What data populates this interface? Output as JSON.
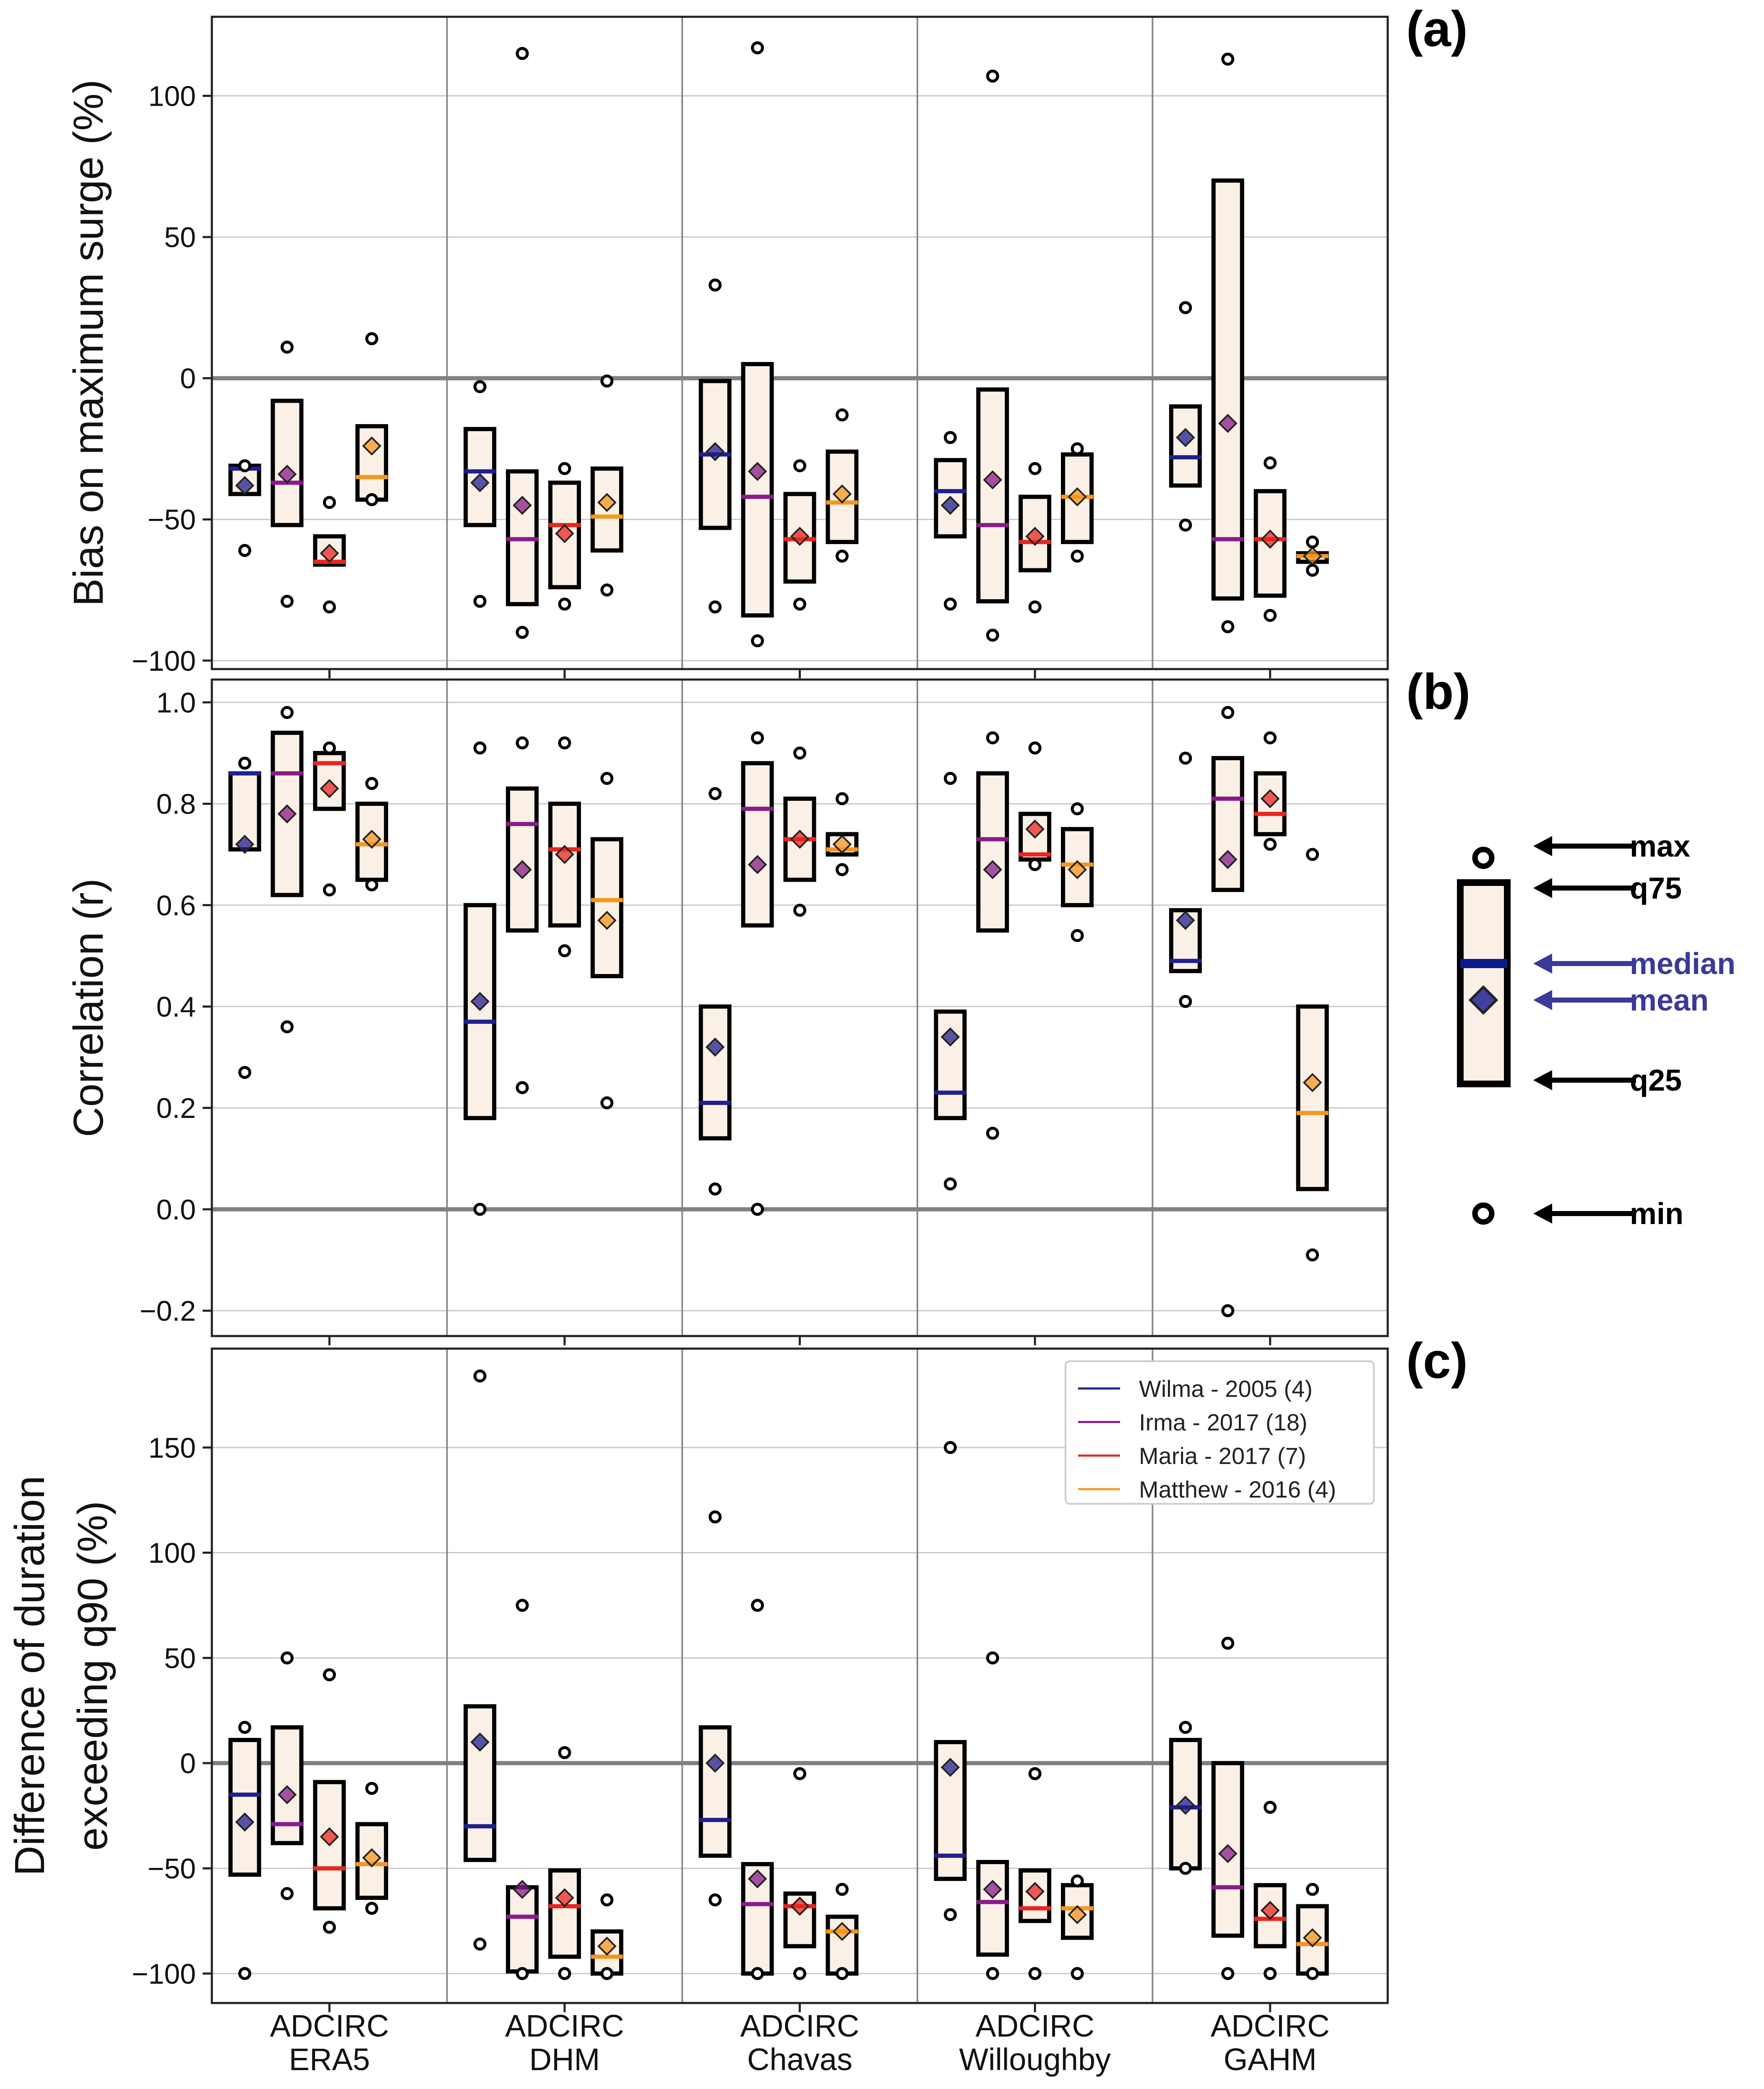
{
  "colors": {
    "Wilma": "#1f1f8f",
    "Irma": "#8a1a8a",
    "Maria": "#e8261f",
    "Matthew": "#f5961e",
    "box_fill": "#fbf0e6",
    "legend_diagram": "#3a3a99"
  },
  "categories": [
    [
      "ADCIRC",
      "ERA5"
    ],
    [
      "ADCIRC",
      "DHM"
    ],
    [
      "ADCIRC",
      "Chavas"
    ],
    [
      "ADCIRC",
      "Willoughby"
    ],
    [
      "ADCIRC",
      "GAHM"
    ]
  ],
  "chart_data": [
    {
      "type": "box",
      "panel": "(a)",
      "ylabel": [
        "Bias on maximum surge (%)"
      ],
      "ylim": [
        -103,
        128
      ],
      "yticks": [
        -100,
        -50,
        0,
        50,
        100
      ],
      "tick_labels": [
        "−100",
        "−50",
        "0",
        "50",
        "100"
      ],
      "grid": true,
      "series": [
        {
          "name": "Wilma",
          "min": [
            -61,
            -79,
            -81,
            -80,
            -52
          ],
          "q25": [
            -41,
            -52,
            -53,
            -56,
            -38
          ],
          "median": [
            -32,
            -33,
            -27,
            -40,
            -28
          ],
          "q75": [
            -31,
            -18,
            -1,
            -29,
            -10
          ],
          "max": [
            -31,
            -3,
            33,
            -21,
            25
          ],
          "mean": [
            -38,
            -37,
            -26,
            -45,
            -21
          ]
        },
        {
          "name": "Irma",
          "min": [
            -79,
            -90,
            -93,
            -91,
            -88
          ],
          "q25": [
            -52,
            -80,
            -84,
            -79,
            -78
          ],
          "median": [
            -37,
            -57,
            -42,
            -52,
            -57
          ],
          "q75": [
            -8,
            -33,
            5,
            -4,
            70
          ],
          "max": [
            11,
            115,
            117,
            107,
            113
          ],
          "mean": [
            -34,
            -45,
            -33,
            -36,
            -16
          ]
        },
        {
          "name": "Maria",
          "min": [
            -81,
            -80,
            -80,
            -81,
            -84
          ],
          "q25": [
            -66,
            -74,
            -72,
            -68,
            -77
          ],
          "median": [
            -65,
            -52,
            -57,
            -58,
            -57
          ],
          "q75": [
            -56,
            -37,
            -41,
            -42,
            -40
          ],
          "max": [
            -44,
            -32,
            -31,
            -32,
            -30
          ],
          "mean": [
            -62,
            -55,
            -56,
            -56,
            -57
          ]
        },
        {
          "name": "Matthew",
          "min": [
            -43,
            -75,
            -63,
            -63,
            -68
          ],
          "q25": [
            -43,
            -61,
            -58,
            -58,
            -65
          ],
          "median": [
            -35,
            -49,
            -44,
            -42,
            -63
          ],
          "q75": [
            -17,
            -32,
            -26,
            -27,
            -62
          ],
          "max": [
            14,
            -1,
            -13,
            -25,
            -58
          ],
          "mean": [
            -24,
            -44,
            -41,
            -42,
            -63
          ]
        }
      ]
    },
    {
      "type": "box",
      "panel": "(b)",
      "ylabel": [
        "Correlation (r)"
      ],
      "ylim": [
        -0.25,
        1.045
      ],
      "yticks": [
        -0.2,
        0.0,
        0.2,
        0.4,
        0.6,
        0.8,
        1.0
      ],
      "tick_labels": [
        "−0.2",
        "0.0",
        "0.2",
        "0.4",
        "0.6",
        "0.8",
        "1.0"
      ],
      "grid": true,
      "series": [
        {
          "name": "Wilma",
          "min": [
            0.27,
            0.0,
            0.04,
            0.05,
            0.41
          ],
          "q25": [
            0.71,
            0.18,
            0.14,
            0.18,
            0.47
          ],
          "median": [
            0.86,
            0.37,
            0.21,
            0.23,
            0.49
          ],
          "q75": [
            0.86,
            0.6,
            0.4,
            0.39,
            0.59
          ],
          "max": [
            0.88,
            0.91,
            0.82,
            0.85,
            0.89
          ],
          "mean": [
            0.72,
            0.41,
            0.32,
            0.34,
            0.57
          ]
        },
        {
          "name": "Irma",
          "min": [
            0.36,
            0.24,
            0.0,
            0.15,
            -0.2
          ],
          "q25": [
            0.62,
            0.55,
            0.56,
            0.55,
            0.63
          ],
          "median": [
            0.86,
            0.76,
            0.79,
            0.73,
            0.81
          ],
          "q75": [
            0.94,
            0.83,
            0.88,
            0.86,
            0.89
          ],
          "max": [
            0.98,
            0.92,
            0.93,
            0.93,
            0.98
          ],
          "mean": [
            0.78,
            0.67,
            0.68,
            0.67,
            0.69
          ]
        },
        {
          "name": "Maria",
          "min": [
            0.63,
            0.51,
            0.59,
            0.68,
            0.72
          ],
          "q25": [
            0.79,
            0.56,
            0.65,
            0.69,
            0.74
          ],
          "median": [
            0.88,
            0.71,
            0.73,
            0.7,
            0.78
          ],
          "q75": [
            0.9,
            0.8,
            0.81,
            0.78,
            0.86
          ],
          "max": [
            0.91,
            0.92,
            0.9,
            0.91,
            0.93
          ],
          "mean": [
            0.83,
            0.7,
            0.73,
            0.75,
            0.81
          ]
        },
        {
          "name": "Matthew",
          "min": [
            0.64,
            0.21,
            0.67,
            0.54,
            -0.09
          ],
          "q25": [
            0.65,
            0.46,
            0.7,
            0.6,
            0.04
          ],
          "median": [
            0.72,
            0.61,
            0.71,
            0.68,
            0.19
          ],
          "q75": [
            0.8,
            0.73,
            0.74,
            0.75,
            0.4
          ],
          "max": [
            0.84,
            0.85,
            0.81,
            0.79,
            0.7
          ],
          "mean": [
            0.73,
            0.57,
            0.72,
            0.67,
            0.25
          ]
        }
      ]
    },
    {
      "type": "box",
      "panel": "(c)",
      "ylabel": [
        "Difference of duration",
        "exceeding q90 (%)"
      ],
      "ylim": [
        -114,
        197
      ],
      "yticks": [
        -100,
        -50,
        0,
        50,
        100,
        150
      ],
      "tick_labels": [
        "−100",
        "−50",
        "0",
        "50",
        "100",
        "150"
      ],
      "grid": true,
      "legend": {
        "placement": "top-right",
        "entries": [
          "Wilma - 2005 (4)",
          "Irma - 2017 (18)",
          "Maria - 2017 (7)",
          "Matthew - 2016 (4)"
        ]
      },
      "series": [
        {
          "name": "Wilma",
          "min": [
            -100,
            -86,
            -65,
            -72,
            -50
          ],
          "q25": [
            -53,
            -46,
            -44,
            -55,
            -50
          ],
          "median": [
            -15,
            -30,
            -27,
            -44,
            -21
          ],
          "q75": [
            11,
            27,
            17,
            10,
            11
          ],
          "max": [
            17,
            184,
            117,
            150,
            17
          ],
          "mean": [
            -28,
            10,
            0,
            -2,
            -20
          ]
        },
        {
          "name": "Irma",
          "min": [
            -62,
            -100,
            -100,
            -100,
            -100
          ],
          "q25": [
            -38,
            -99,
            -100,
            -91,
            -82
          ],
          "median": [
            -29,
            -73,
            -67,
            -66,
            -59
          ],
          "q75": [
            17,
            -59,
            -48,
            -47,
            0
          ],
          "max": [
            50,
            75,
            75,
            50,
            57
          ],
          "mean": [
            -15,
            -60,
            -55,
            -60,
            -43
          ]
        },
        {
          "name": "Maria",
          "min": [
            -78,
            -100,
            -100,
            -100,
            -100
          ],
          "q25": [
            -69,
            -92,
            -87,
            -75,
            -87
          ],
          "median": [
            -50,
            -68,
            -68,
            -69,
            -74
          ],
          "q75": [
            -9,
            -51,
            -62,
            -51,
            -58
          ],
          "max": [
            42,
            5,
            -5,
            -5,
            -21
          ],
          "mean": [
            -35,
            -64,
            -68,
            -61,
            -70
          ]
        },
        {
          "name": "Matthew",
          "min": [
            -69,
            -100,
            -100,
            -100,
            -100
          ],
          "q25": [
            -64,
            -100,
            -100,
            -83,
            -100
          ],
          "median": [
            -48,
            -92,
            -80,
            -69,
            -86
          ],
          "q75": [
            -29,
            -80,
            -73,
            -58,
            -68
          ],
          "max": [
            -12,
            -65,
            -60,
            -56,
            -60
          ],
          "mean": [
            -45,
            -87,
            -80,
            -72,
            -83
          ]
        }
      ]
    }
  ],
  "side_legend": {
    "max": "max",
    "q75": "q75",
    "median": "median",
    "mean": "mean",
    "q25": "q25",
    "min": "min"
  }
}
